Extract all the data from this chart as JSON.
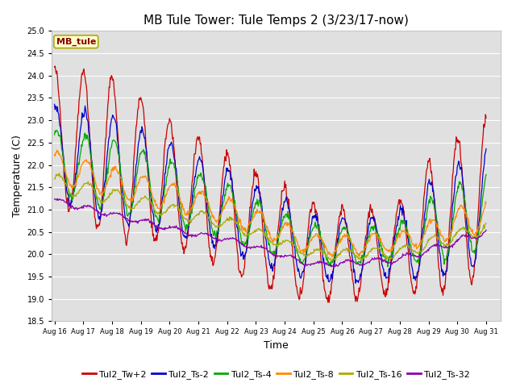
{
  "title": "MB Tule Tower: Tule Temps 2 (3/23/17-now)",
  "xlabel": "Time",
  "ylabel": "Temperature (C)",
  "ylim": [
    18.5,
    25.0
  ],
  "yticks": [
    18.5,
    19.0,
    19.5,
    20.0,
    20.5,
    21.0,
    21.5,
    22.0,
    22.5,
    23.0,
    23.5,
    24.0,
    24.5,
    25.0
  ],
  "xtick_labels": [
    "Aug 16",
    "Aug 17",
    "Aug 18",
    "Aug 19",
    "Aug 20",
    "Aug 21",
    "Aug 22",
    "Aug 23",
    "Aug 24",
    "Aug 25",
    "Aug 26",
    "Aug 27",
    "Aug 28",
    "Aug 29",
    "Aug 30",
    "Aug 31"
  ],
  "line_colors": [
    "#cc0000",
    "#0000cc",
    "#00aa00",
    "#ff8800",
    "#aaaa00",
    "#8800aa"
  ],
  "line_labels": [
    "Tul2_Tw+2",
    "Tul2_Ts-2",
    "Tul2_Ts-4",
    "Tul2_Ts-8",
    "Tul2_Ts-16",
    "Tul2_Ts-32"
  ],
  "annotation_text": "MB_tule",
  "annotation_bg": "#ffffcc",
  "annotation_edge": "#aaaa00",
  "annotation_textcolor": "#880000",
  "bg_color": "#e0e0e0",
  "title_fontsize": 11,
  "axis_fontsize": 9,
  "tick_fontsize": 7,
  "legend_fontsize": 8
}
